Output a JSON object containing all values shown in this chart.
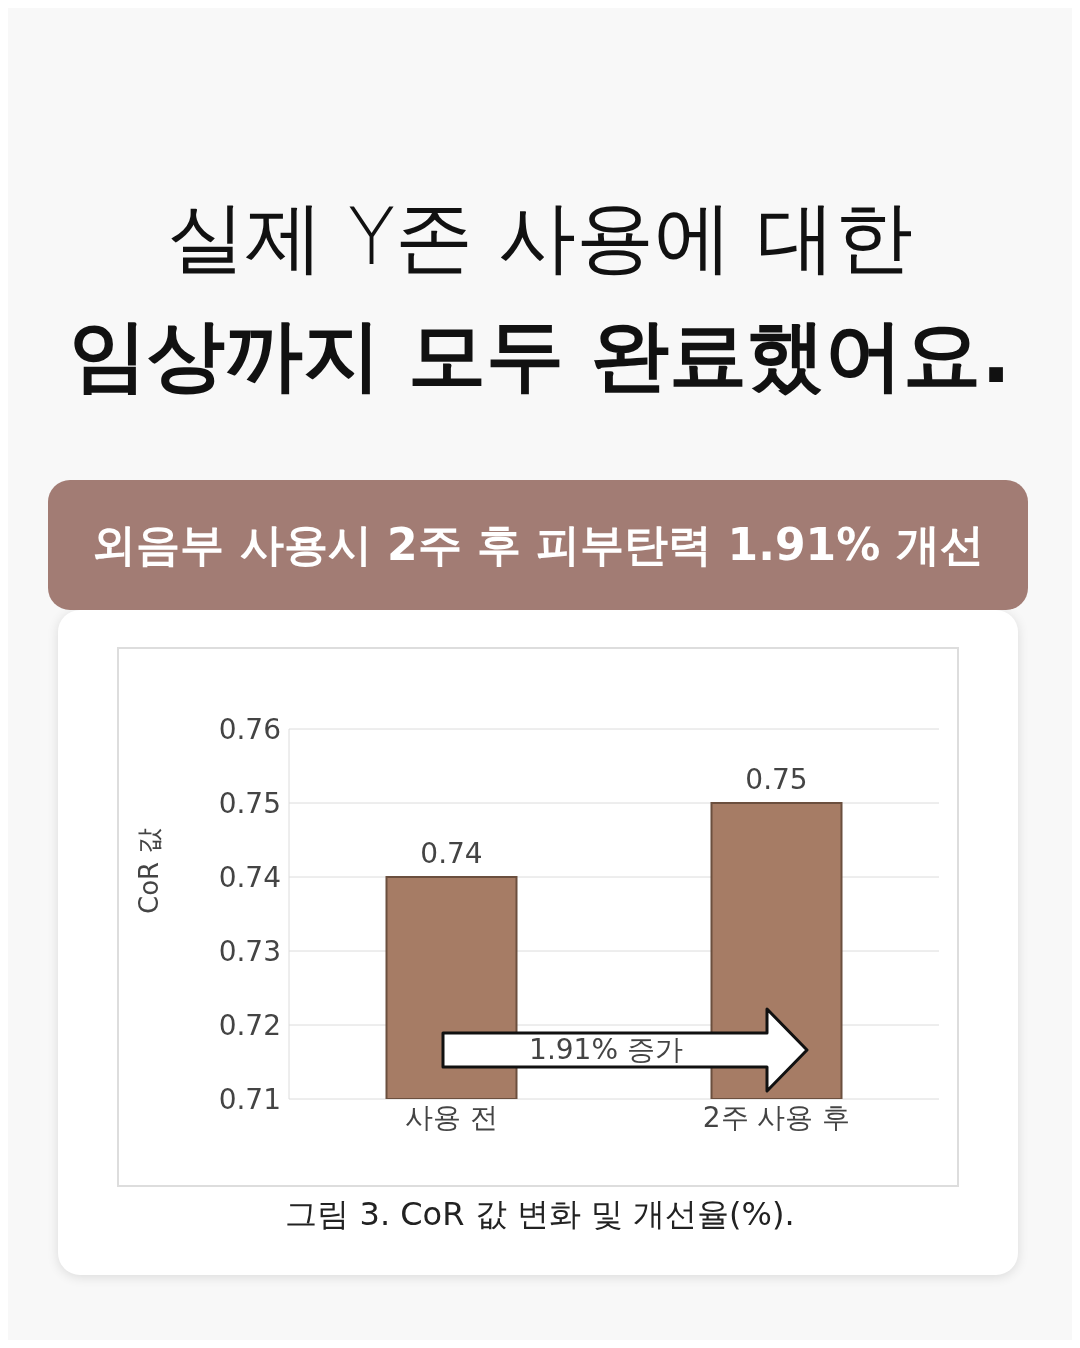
{
  "chart_data": {
    "type": "bar",
    "title": "실제 Y존 사용에 대한\n임상까지 모두 완료했어요.",
    "subtitle": "외음부 사용시 2주 후 피부탄력 1.91% 개선",
    "ylabel": "CoR 값",
    "categories": [
      "사용 전",
      "2주 사용 후"
    ],
    "values": [
      0.74,
      0.75
    ],
    "color": "#a67c65",
    "ylim": [
      0.71,
      0.76
    ],
    "yticks": [
      0.71,
      0.72,
      0.73,
      0.74,
      0.75,
      0.76
    ],
    "grid": "y",
    "data_labels": true,
    "annotations": [
      "1.91% 증가",
      "그림 3. CoR 값 변화 및 개선율(%)."
    ]
  }
}
